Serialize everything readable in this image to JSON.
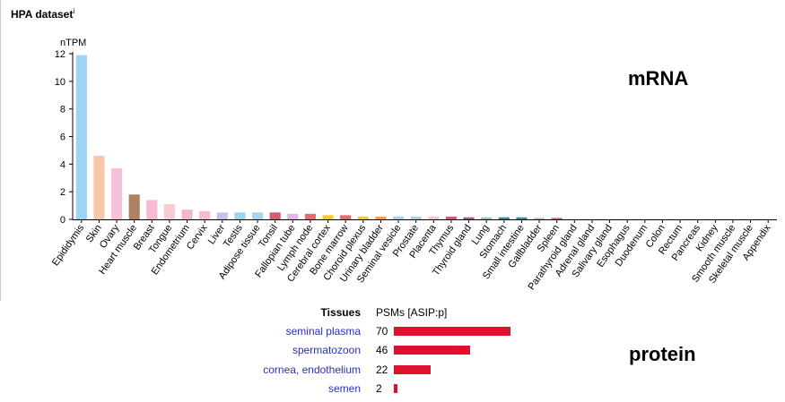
{
  "header": {
    "title": "HPA dataset",
    "info_marker": "i"
  },
  "labels": {
    "mrna": "mRNA",
    "protein": "protein"
  },
  "colors": {
    "protein_bar": "#e0102f",
    "link": "#2d2dc8"
  },
  "chart_data": [
    {
      "type": "bar",
      "title": "",
      "ylabel": "nTPM",
      "xlabel": "",
      "ylim": [
        0,
        12
      ],
      "yticks": [
        0,
        2,
        4,
        6,
        8,
        10,
        12
      ],
      "grid": false,
      "categories": [
        "Epididymis",
        "Skin",
        "Ovary",
        "Heart muscle",
        "Breast",
        "Tongue",
        "Endometrium",
        "Cervix",
        "Liver",
        "Testis",
        "Adipose tissue",
        "Tonsil",
        "Fallopian tube",
        "Lymph node",
        "Cerebral cortex",
        "Bone marrow",
        "Choroid plexus",
        "Urinary bladder",
        "Seminal vesicle",
        "Prostate",
        "Placenta",
        "Thymus",
        "Thyroid gland",
        "Lung",
        "Stomach",
        "Small intestine",
        "Gallbladder",
        "Spleen",
        "Parathyroid gland",
        "Adrenal gland",
        "Salivary gland",
        "Esophagus",
        "Duodenum",
        "Colon",
        "Rectum",
        "Pancreas",
        "Kidney",
        "Smooth muscle",
        "Skeletal muscle",
        "Appendix"
      ],
      "values": [
        11.9,
        4.6,
        3.7,
        1.8,
        1.4,
        1.1,
        0.7,
        0.6,
        0.5,
        0.5,
        0.5,
        0.5,
        0.4,
        0.4,
        0.3,
        0.3,
        0.2,
        0.2,
        0.2,
        0.2,
        0.2,
        0.2,
        0.15,
        0.15,
        0.15,
        0.15,
        0.1,
        0.1,
        0,
        0,
        0,
        0,
        0,
        0,
        0,
        0,
        0,
        0,
        0,
        0
      ],
      "colors": [
        "#9bd4f4",
        "#f8c7a8",
        "#f7c0dc",
        "#ae8065",
        "#f8b9d4",
        "#f8ccd4",
        "#f3b6ce",
        "#f6bcd3",
        "#c7c0ec",
        "#9dd4f0",
        "#a9d4ea",
        "#d45f6b",
        "#e0b6e4",
        "#e07070",
        "#f2cb2c",
        "#e07070",
        "#f0c84a",
        "#e6a050",
        "#a7cfe8",
        "#a9cfe6",
        "#f4c2d4",
        "#c85c7a",
        "#9c5a8a",
        "#9dc4b4",
        "#2e8a9a",
        "#3a8ab0",
        "#c8b4d8",
        "#c86060",
        "#c08090",
        "#c08080",
        "#b09aa8",
        "#a0a0c0",
        "#9090b0",
        "#909090",
        "#9090a0",
        "#b0a0c0",
        "#a0a0a0",
        "#c0a0a0",
        "#a09090",
        "#a0a0b0"
      ]
    },
    {
      "type": "bar",
      "orientation": "horizontal",
      "column_headers": [
        "Tissues",
        "PSMs [ASIP:p]"
      ],
      "categories": [
        "seminal plasma",
        "spermatozoon",
        "cornea, endothelium",
        "semen"
      ],
      "values": [
        70,
        46,
        22,
        2
      ]
    }
  ]
}
